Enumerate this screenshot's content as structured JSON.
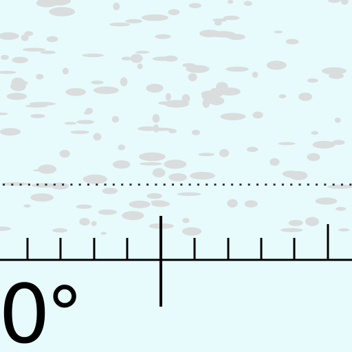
{
  "scale": {
    "reading_label": "0",
    "degree_symbol": "°",
    "line_color": "#000000",
    "background_color": "#e7fbfd",
    "speckle_color": "#d8d8d8",
    "dotted_line_color": "#333333",
    "minor_ticks_left": 4,
    "minor_ticks_right": 4,
    "major_tick_right": 1
  }
}
